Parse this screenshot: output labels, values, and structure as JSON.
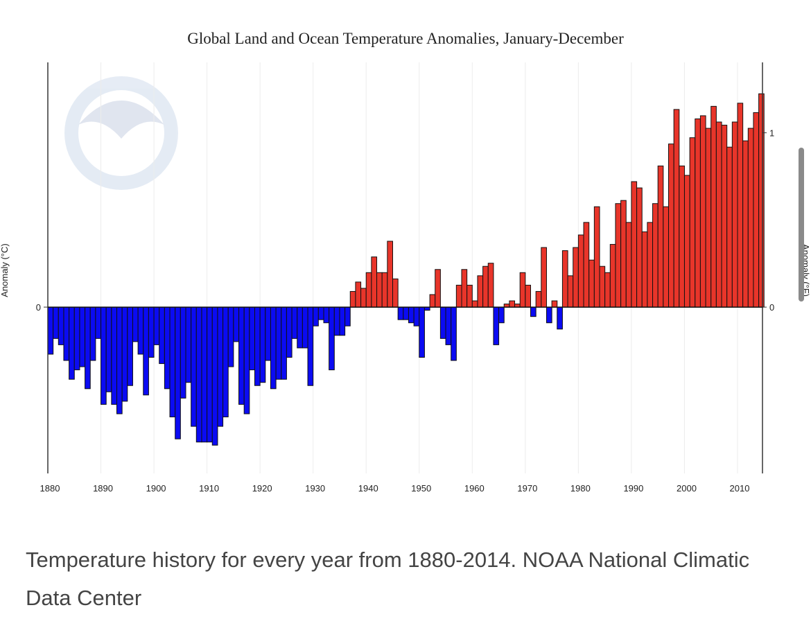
{
  "chart_data": {
    "type": "bar",
    "title": "Global Land and Ocean Temperature Anomalies, January-December",
    "ylabel": "Anomaly (°C)",
    "ylabel_right": "Anomaly (°F)",
    "ylim": [
      -0.53,
      0.78
    ],
    "yticks_left": [
      0
    ],
    "yticks_right": [
      0,
      1
    ],
    "xticks": [
      1880,
      1890,
      1900,
      1910,
      1920,
      1930,
      1940,
      1950,
      1960,
      1970,
      1980,
      1990,
      2000,
      2010
    ],
    "grid": "vertical",
    "positive_color": "#e8352a",
    "negative_color": "#0b0bf2",
    "watermark": "NOAA",
    "years_start": 1880,
    "years_end": 2014,
    "values": [
      -0.15,
      -0.1,
      -0.12,
      -0.17,
      -0.23,
      -0.2,
      -0.19,
      -0.26,
      -0.17,
      -0.1,
      -0.31,
      -0.27,
      -0.31,
      -0.34,
      -0.3,
      -0.25,
      -0.11,
      -0.15,
      -0.28,
      -0.16,
      -0.12,
      -0.18,
      -0.26,
      -0.35,
      -0.42,
      -0.29,
      -0.24,
      -0.38,
      -0.43,
      -0.43,
      -0.43,
      -0.44,
      -0.38,
      -0.35,
      -0.19,
      -0.11,
      -0.31,
      -0.34,
      -0.2,
      -0.25,
      -0.24,
      -0.17,
      -0.26,
      -0.23,
      -0.23,
      -0.16,
      -0.1,
      -0.13,
      -0.13,
      -0.25,
      -0.06,
      -0.04,
      -0.05,
      -0.2,
      -0.09,
      -0.09,
      -0.06,
      0.05,
      0.08,
      0.06,
      0.11,
      0.16,
      0.11,
      0.11,
      0.21,
      0.09,
      -0.04,
      -0.04,
      -0.05,
      -0.06,
      -0.16,
      -0.01,
      0.04,
      0.12,
      -0.1,
      -0.12,
      -0.17,
      0.07,
      0.12,
      0.07,
      0.02,
      0.1,
      0.13,
      0.14,
      -0.12,
      -0.05,
      0.01,
      0.02,
      0.01,
      0.11,
      0.07,
      -0.03,
      0.05,
      0.19,
      -0.05,
      0.02,
      -0.07,
      0.18,
      0.1,
      0.19,
      0.23,
      0.27,
      0.15,
      0.32,
      0.13,
      0.11,
      0.2,
      0.33,
      0.34,
      0.27,
      0.4,
      0.38,
      0.24,
      0.27,
      0.33,
      0.45,
      0.32,
      0.52,
      0.63,
      0.45,
      0.42,
      0.54,
      0.6,
      0.61,
      0.57,
      0.64,
      0.59,
      0.58,
      0.51,
      0.59,
      0.65,
      0.53,
      0.57,
      0.62,
      0.68
    ]
  },
  "caption": "Temperature history for every year from 1880-2014. NOAA National Climatic Data Center"
}
